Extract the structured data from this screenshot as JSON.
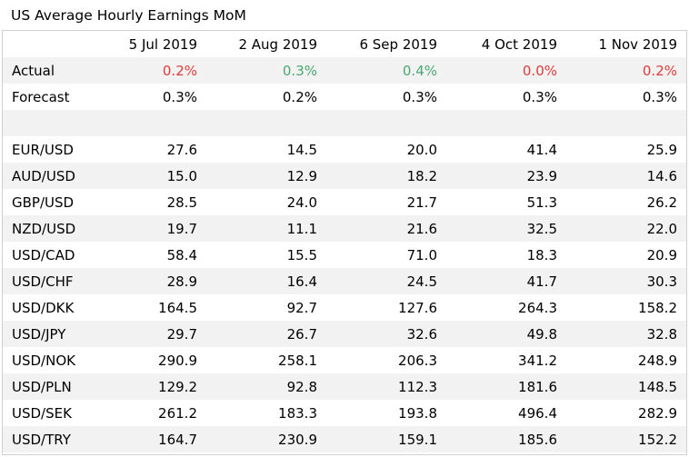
{
  "title": "US Average Hourly Earnings MoM",
  "colors": {
    "positive": "#4aa771",
    "negative": "#e03b3b",
    "shade": "#f2f2f2"
  },
  "chart_data": {
    "type": "table",
    "title": "US Average Hourly Earnings MoM",
    "columns": [
      "5 Jul 2019",
      "2 Aug 2019",
      "6 Sep 2019",
      "4 Oct 2019",
      "1 Nov 2019"
    ],
    "actual": {
      "label": "Actual",
      "values": [
        "0.2%",
        "0.3%",
        "0.4%",
        "0.0%",
        "0.2%"
      ],
      "status": [
        "down",
        "up",
        "up",
        "down",
        "down"
      ]
    },
    "forecast": {
      "label": "Forecast",
      "values": [
        "0.3%",
        "0.2%",
        "0.3%",
        "0.3%",
        "0.3%"
      ]
    },
    "rows": [
      {
        "label": "EUR/USD",
        "values": [
          "27.6",
          "14.5",
          "20.0",
          "41.4",
          "25.9"
        ]
      },
      {
        "label": "AUD/USD",
        "values": [
          "15.0",
          "12.9",
          "18.2",
          "23.9",
          "14.6"
        ]
      },
      {
        "label": "GBP/USD",
        "values": [
          "28.5",
          "24.0",
          "21.7",
          "51.3",
          "26.2"
        ]
      },
      {
        "label": "NZD/USD",
        "values": [
          "19.7",
          "11.1",
          "21.6",
          "32.5",
          "22.0"
        ]
      },
      {
        "label": "USD/CAD",
        "values": [
          "58.4",
          "15.5",
          "71.0",
          "18.3",
          "20.9"
        ]
      },
      {
        "label": "USD/CHF",
        "values": [
          "28.9",
          "16.4",
          "24.5",
          "41.7",
          "30.3"
        ]
      },
      {
        "label": "USD/DKK",
        "values": [
          "164.5",
          "92.7",
          "127.6",
          "264.3",
          "158.2"
        ]
      },
      {
        "label": "USD/JPY",
        "values": [
          "29.7",
          "26.7",
          "32.6",
          "49.8",
          "32.8"
        ]
      },
      {
        "label": "USD/NOK",
        "values": [
          "290.9",
          "258.1",
          "206.3",
          "341.2",
          "248.9"
        ]
      },
      {
        "label": "USD/PLN",
        "values": [
          "129.2",
          "92.8",
          "112.3",
          "181.6",
          "148.5"
        ]
      },
      {
        "label": "USD/SEK",
        "values": [
          "261.2",
          "183.3",
          "193.8",
          "496.4",
          "282.9"
        ]
      },
      {
        "label": "USD/TRY",
        "values": [
          "164.7",
          "230.9",
          "159.1",
          "185.6",
          "152.2"
        ]
      }
    ]
  }
}
